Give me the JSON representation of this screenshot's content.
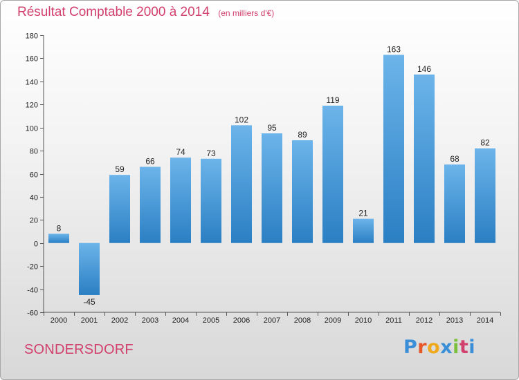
{
  "header": {
    "title": "Résultat Comptable 2000 à 2014",
    "subtitle": "(en milliers d'€)"
  },
  "footer": {
    "commune": "SONDERSDORF",
    "logo_letters": [
      "P",
      "r",
      "o",
      "x",
      "i",
      "t",
      "i"
    ],
    "logo_colors": [
      "#3a8fd8",
      "#e8562a",
      "#f0a81c",
      "#3a8fd8",
      "#7cbf3a",
      "#d2406e",
      "#3a8fd8"
    ]
  },
  "colors": {
    "bar_light": "#6cb4ea",
    "bar_dark": "#2a7fc3",
    "title": "#d2406e"
  },
  "chart_data": {
    "type": "bar",
    "title": "Résultat Comptable 2000 à 2014",
    "xlabel": "",
    "ylabel": "",
    "categories": [
      "2000",
      "2001",
      "2002",
      "2003",
      "2004",
      "2005",
      "2006",
      "2007",
      "2008",
      "2009",
      "2010",
      "2011",
      "2012",
      "2013",
      "2014"
    ],
    "values": [
      8,
      -45,
      59,
      66,
      74,
      73,
      102,
      95,
      89,
      119,
      21,
      163,
      146,
      68,
      82
    ],
    "ylim": [
      -60,
      180
    ],
    "yticks": [
      -60,
      -40,
      -20,
      0,
      20,
      40,
      60,
      80,
      100,
      120,
      140,
      160,
      180
    ],
    "grid": false
  }
}
